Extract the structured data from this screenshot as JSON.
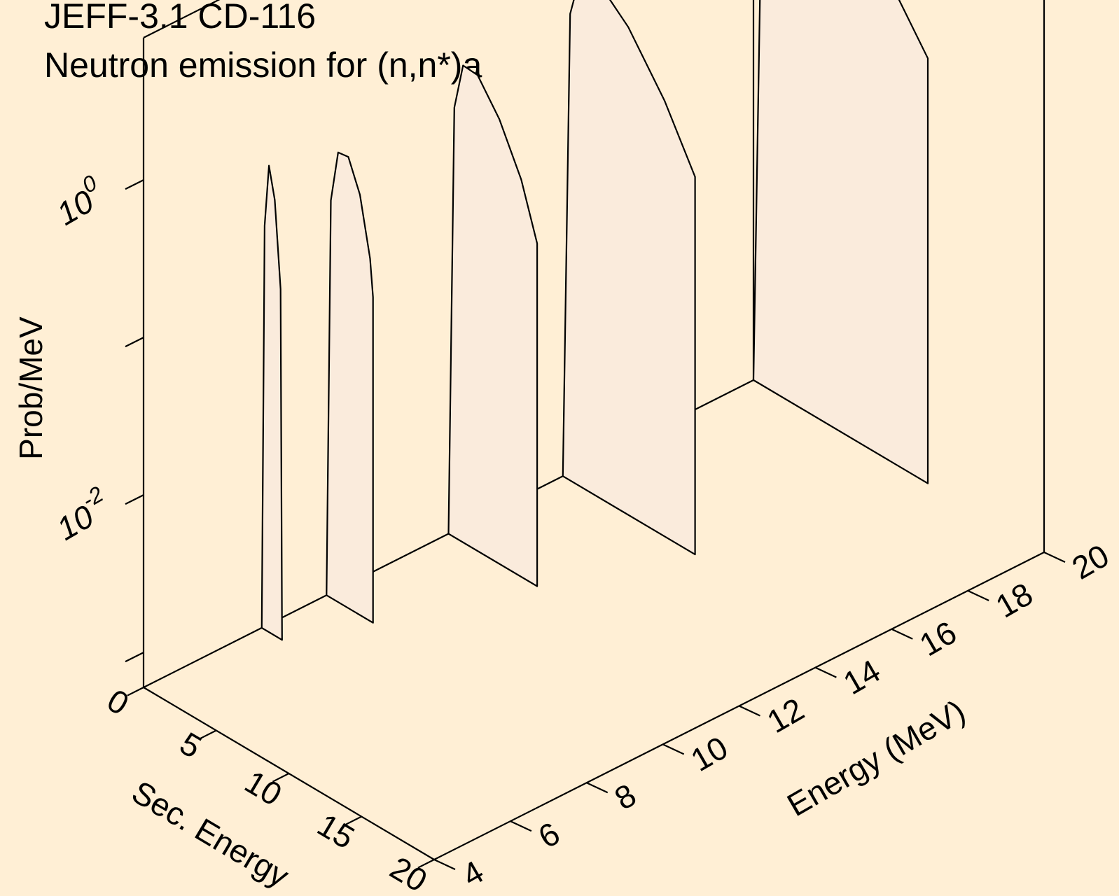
{
  "chart_data": {
    "type": "area",
    "title": "JEFF-3.1 CD-116",
    "subtitle": "Neutron emission for (n,n*)a",
    "xlabel": "Sec. Energy",
    "ylabel": "Energy (MeV)",
    "zlabel": "Prob/MeV",
    "x_scale": "linear",
    "y_scale": "linear",
    "z_scale": "log",
    "xlim": [
      0,
      20
    ],
    "ylim": [
      4,
      20
    ],
    "zlim": [
      0.0006,
      8
    ],
    "x_ticks": [
      "0",
      "5",
      "10",
      "15",
      "20"
    ],
    "y_ticks": [
      "4",
      "6",
      "8",
      "10",
      "12",
      "14",
      "16",
      "18",
      "20"
    ],
    "z_ticks": [
      {
        "base": "10",
        "exp": "-2"
      },
      {
        "base": "10",
        "exp": "0"
      }
    ],
    "series": [
      {
        "incident_energy": 7.1,
        "sec_energy": [
          0.0,
          0.2,
          0.5,
          0.9,
          1.3,
          1.4
        ],
        "prob": [
          0.0006,
          0.22,
          0.55,
          0.35,
          0.1,
          0.0006
        ]
      },
      {
        "incident_energy": 8.8,
        "sec_energy": [
          0.0,
          0.3,
          0.8,
          1.5,
          2.3,
          3.0,
          3.2,
          3.2
        ],
        "prob": [
          0.0006,
          0.2,
          0.43,
          0.44,
          0.28,
          0.12,
          0.07,
          0.0006
        ]
      },
      {
        "incident_energy": 12.0,
        "sec_energy": [
          0.0,
          0.4,
          1.0,
          2.0,
          3.5,
          5.0,
          6.1,
          6.1
        ],
        "prob": [
          0.0006,
          0.32,
          0.64,
          0.63,
          0.4,
          0.2,
          0.09,
          0.0006
        ]
      },
      {
        "incident_energy": 15.0,
        "sec_energy": [
          0.0,
          0.5,
          1.2,
          2.5,
          4.5,
          7.0,
          9.1,
          9.1
        ],
        "prob": [
          0.0006,
          0.55,
          1.05,
          1.1,
          0.75,
          0.35,
          0.15,
          0.0006
        ]
      },
      {
        "incident_energy": 20.0,
        "sec_energy": [
          0.0,
          0.6,
          1.5,
          3.0,
          5.5,
          9.0,
          12.0,
          12.0
        ],
        "prob": [
          0.0006,
          1.2,
          2.3,
          2.4,
          1.55,
          0.75,
          0.3,
          0.0006
        ]
      }
    ],
    "grid": false,
    "legend": "none"
  }
}
